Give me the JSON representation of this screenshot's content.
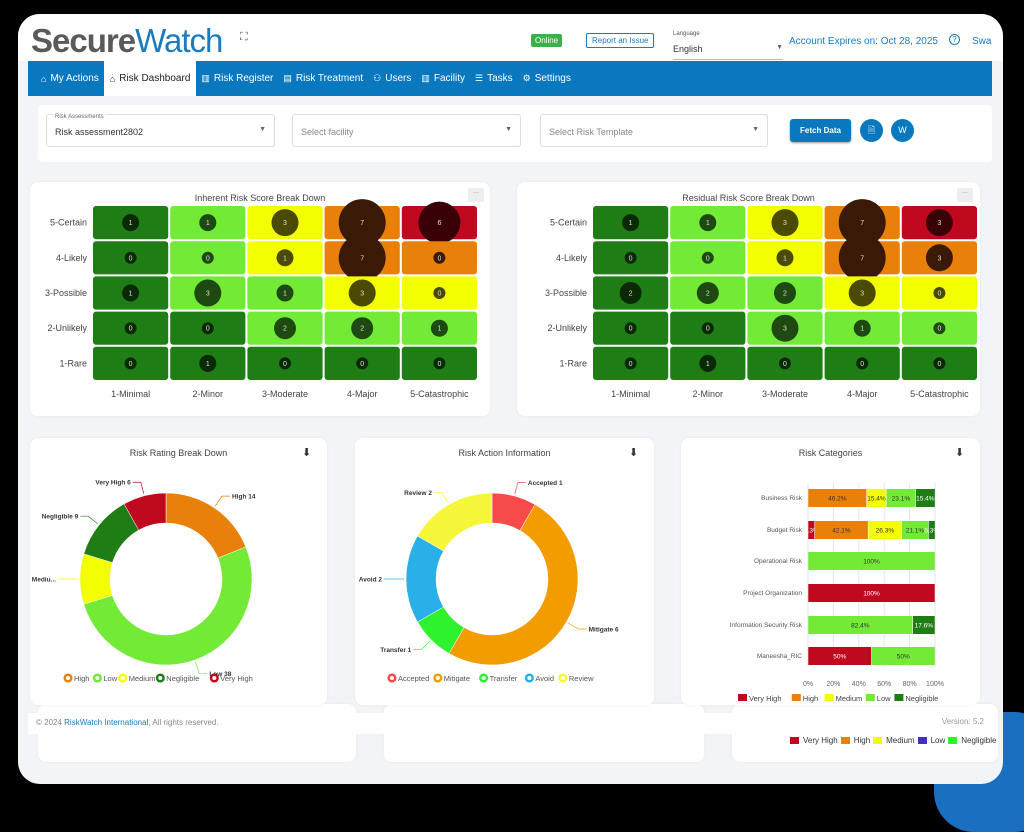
{
  "header": {
    "logo_part1": "Secure",
    "logo_part2": "Watch",
    "status": "Online",
    "report_issue": "Report an Issue",
    "language_label": "Language",
    "language_value": "English",
    "account_expires": "Account Expires on: Oct 28, 2025",
    "user": "Swa"
  },
  "nav": {
    "items": [
      {
        "label": "My Actions",
        "icon": "home-icon"
      },
      {
        "label": "Risk Dashboard",
        "icon": "home-icon",
        "active": true
      },
      {
        "label": "Risk Register",
        "icon": "building-icon"
      },
      {
        "label": "Risk Treatment",
        "icon": "document-icon"
      },
      {
        "label": "Users",
        "icon": "users-icon"
      },
      {
        "label": "Facility",
        "icon": "building-icon"
      },
      {
        "label": "Tasks",
        "icon": "list-icon"
      },
      {
        "label": "Settings",
        "icon": "gear-icon"
      }
    ]
  },
  "filters": {
    "assessment_label": "Risk Assessments",
    "assessment_value": "Risk assessment2802",
    "facility_placeholder": "Select facility",
    "template_placeholder": "Select Risk Template",
    "fetch_label": "Fetch Data"
  },
  "colors": {
    "negligible": "#1e7d14",
    "low": "#72ea36",
    "medium": "#f3ff00",
    "high": "#e8800a",
    "very_high": "#c0081f"
  },
  "chart_data": [
    {
      "type": "heatmap",
      "title": "Inherent Risk Score Break Down",
      "y_labels": [
        "5-Certain",
        "4-Likely",
        "3-Possible",
        "2-Unlikely",
        "1-Rare"
      ],
      "x_labels": [
        "1-Minimal",
        "2-Minor",
        "3-Moderate",
        "4-Major",
        "5-Catastrophic"
      ],
      "values": [
        [
          1,
          1,
          3,
          7,
          6
        ],
        [
          0,
          0,
          1,
          7,
          0
        ],
        [
          1,
          3,
          1,
          3,
          0
        ],
        [
          0,
          0,
          2,
          2,
          1
        ],
        [
          0,
          1,
          0,
          0,
          0
        ]
      ],
      "levels": [
        [
          "negligible",
          "low",
          "medium",
          "high",
          "very_high"
        ],
        [
          "negligible",
          "low",
          "medium",
          "high",
          "high"
        ],
        [
          "negligible",
          "low",
          "low",
          "medium",
          "medium"
        ],
        [
          "negligible",
          "negligible",
          "low",
          "low",
          "low"
        ],
        [
          "negligible",
          "negligible",
          "negligible",
          "negligible",
          "negligible"
        ]
      ]
    },
    {
      "type": "heatmap",
      "title": "Residual Risk Score Break Down",
      "y_labels": [
        "5-Certain",
        "4-Likely",
        "3-Possible",
        "2-Unlikely",
        "1-Rare"
      ],
      "x_labels": [
        "1-Minimal",
        "2-Minor",
        "3-Moderate",
        "4-Major",
        "5-Catastrophic"
      ],
      "values": [
        [
          1,
          1,
          3,
          7,
          3
        ],
        [
          0,
          0,
          1,
          7,
          3
        ],
        [
          2,
          2,
          2,
          3,
          0
        ],
        [
          0,
          0,
          3,
          1,
          0
        ],
        [
          0,
          1,
          0,
          0,
          0
        ]
      ],
      "levels": [
        [
          "negligible",
          "low",
          "medium",
          "high",
          "very_high"
        ],
        [
          "negligible",
          "low",
          "medium",
          "high",
          "high"
        ],
        [
          "negligible",
          "low",
          "low",
          "medium",
          "medium"
        ],
        [
          "negligible",
          "negligible",
          "low",
          "low",
          "low"
        ],
        [
          "negligible",
          "negligible",
          "negligible",
          "negligible",
          "negligible"
        ]
      ]
    },
    {
      "type": "pie",
      "title": "Risk Rating Break Down",
      "slices": [
        {
          "name": "High",
          "value": 14,
          "label": "High 14",
          "color": "#e8800a"
        },
        {
          "name": "Low",
          "value": 38,
          "label": "Low 38",
          "color": "#72ea36"
        },
        {
          "name": "Medium",
          "value": 7,
          "label": "Mediu...",
          "color": "#f3ff00"
        },
        {
          "name": "Negligible",
          "value": 9,
          "label": "Negligible 9",
          "color": "#1e7d14"
        },
        {
          "name": "Very High",
          "value": 6,
          "label": "Very High 6",
          "color": "#c0081f"
        }
      ],
      "legend": "bottom"
    },
    {
      "type": "pie",
      "title": "Risk Action Information",
      "slices": [
        {
          "name": "Accepted",
          "value": 1,
          "label": "Accepted 1",
          "color": "#f74a4a"
        },
        {
          "name": "Mitigate",
          "value": 6,
          "label": "Mitigate 6",
          "color": "#f39c00"
        },
        {
          "name": "Transfer",
          "value": 1,
          "label": "Transfer 1",
          "color": "#2ef22e"
        },
        {
          "name": "Avoid",
          "value": 2,
          "label": "Avoid 2",
          "color": "#2ab0e8"
        },
        {
          "name": "Review",
          "value": 2,
          "label": "Review 2",
          "color": "#f7f73a"
        }
      ],
      "legend": "bottom"
    },
    {
      "type": "bar",
      "stacked": true,
      "orientation": "horizontal",
      "title": "Risk Categories",
      "categories": [
        "Business Risk",
        "Budget Risk",
        "Operational Risk",
        "Project Organization",
        "Information Security Risk",
        "Maneesha_RIC"
      ],
      "series": [
        {
          "name": "Very High",
          "color": "#c0081f",
          "values": [
            0,
            5.3,
            0,
            100,
            0,
            50
          ]
        },
        {
          "name": "High",
          "color": "#e8800a",
          "values": [
            46.2,
            42.1,
            0,
            0,
            0,
            0
          ]
        },
        {
          "name": "Medium",
          "color": "#f3ff00",
          "values": [
            15.4,
            26.3,
            0,
            0,
            0,
            0
          ]
        },
        {
          "name": "Low",
          "color": "#72ea36",
          "values": [
            23.1,
            21.1,
            100,
            0,
            82.4,
            50
          ]
        },
        {
          "name": "Negligible",
          "color": "#1e7d14",
          "values": [
            15.4,
            5.3,
            0,
            0,
            17.6,
            0
          ]
        }
      ],
      "x_ticks": [
        "0%",
        "20%",
        "40%",
        "60%",
        "80%",
        "100%"
      ],
      "xlim": [
        0,
        100
      ],
      "legend": "bottom"
    }
  ],
  "hidden_legend": [
    {
      "name": "Very High",
      "color": "#c0081f"
    },
    {
      "name": "High",
      "color": "#e8800a"
    },
    {
      "name": "Medium",
      "color": "#f3ff00"
    },
    {
      "name": "Low",
      "color": "#4030c0"
    },
    {
      "name": "Negligible",
      "color": "#2ef22e"
    }
  ],
  "footer": {
    "copyright_prefix": "© 2024 ",
    "company": "RiskWatch International",
    "copyright_suffix": ", All rights reserved.",
    "version": "Version: 5.2"
  }
}
